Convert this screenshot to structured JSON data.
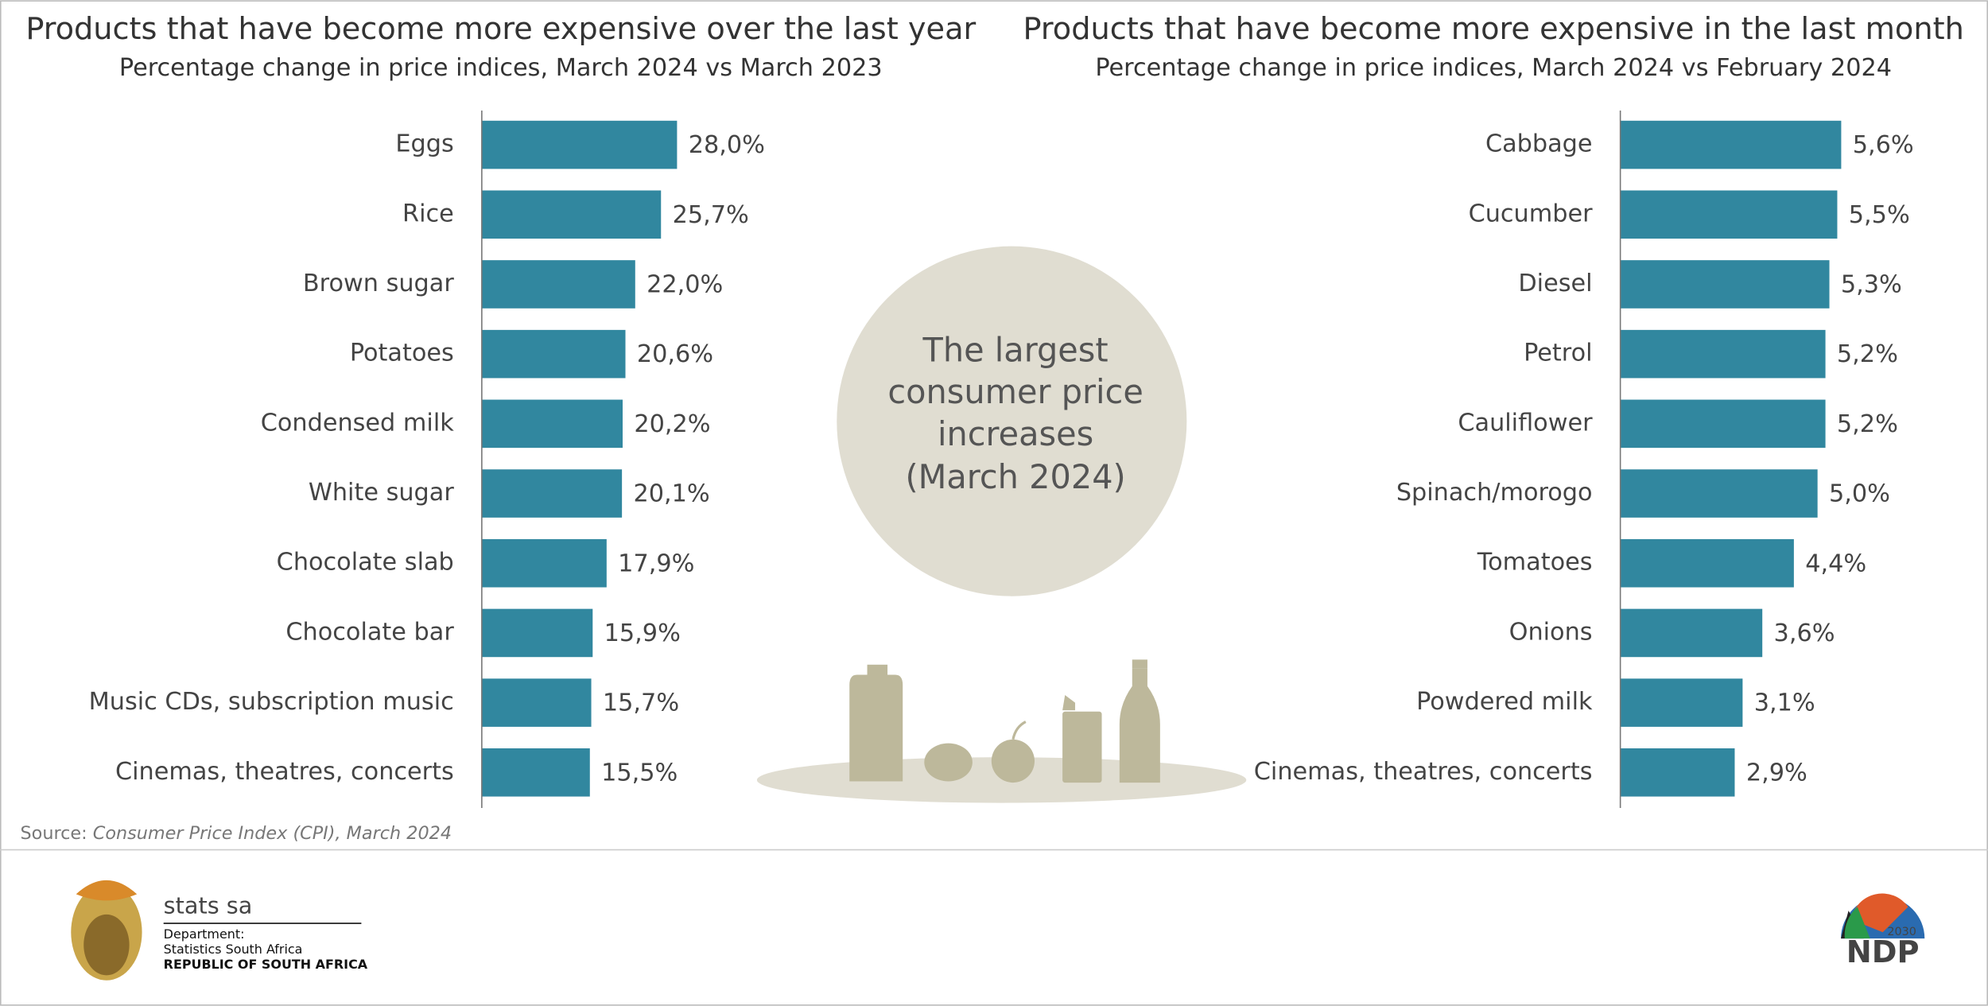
{
  "chart_data": [
    {
      "type": "bar",
      "orientation": "horizontal",
      "title": "Products that have become more expensive over the last year",
      "subtitle": "Percentage change in price indices, March 2024 vs March 2023",
      "categories": [
        "Eggs",
        "Rice",
        "Brown sugar",
        "Potatoes",
        "Condensed milk",
        "White sugar",
        "Chocolate slab",
        "Chocolate bar",
        "Music CDs, subscription music",
        "Cinemas, theatres, concerts"
      ],
      "values": [
        28.0,
        25.7,
        22.0,
        20.6,
        20.2,
        20.1,
        17.9,
        15.9,
        15.7,
        15.5
      ],
      "value_labels": [
        "28,0%",
        "25,7%",
        "22,0%",
        "20,6%",
        "20,2%",
        "20,1%",
        "17,9%",
        "15,9%",
        "15,7%",
        "15,5%"
      ],
      "color": "#31879f",
      "xlim": [
        0,
        50
      ]
    },
    {
      "type": "bar",
      "orientation": "horizontal",
      "title": "Products that have become more expensive in the last month",
      "subtitle": "Percentage change in price indices, March 2024 vs February 2024",
      "categories": [
        "Cabbage",
        "Cucumber",
        "Diesel",
        "Petrol",
        "Cauliflower",
        "Spinach/morogo",
        "Tomatoes",
        "Onions",
        "Powdered milk",
        "Cinemas, theatres, concerts"
      ],
      "values": [
        5.6,
        5.5,
        5.3,
        5.2,
        5.2,
        5.0,
        4.4,
        3.6,
        3.1,
        2.9
      ],
      "value_labels": [
        "5,6%",
        "5,5%",
        "5,3%",
        "5,2%",
        "5,2%",
        "5,0%",
        "4,4%",
        "3,6%",
        "3,1%",
        "2,9%"
      ],
      "color": "#31879f",
      "xlim": [
        0,
        9
      ]
    }
  ],
  "center_note": [
    "The largest",
    "consumer price",
    "increases",
    "(March 2024)"
  ],
  "source": {
    "label": "Source:",
    "text": "Consumer Price Index (CPI), March 2024"
  },
  "footer": {
    "brand": "stats sa",
    "department": "Department:",
    "name": "Statistics South Africa",
    "country": "REPUBLIC OF SOUTH AFRICA",
    "ndp_year": "2030",
    "ndp": "NDP"
  }
}
